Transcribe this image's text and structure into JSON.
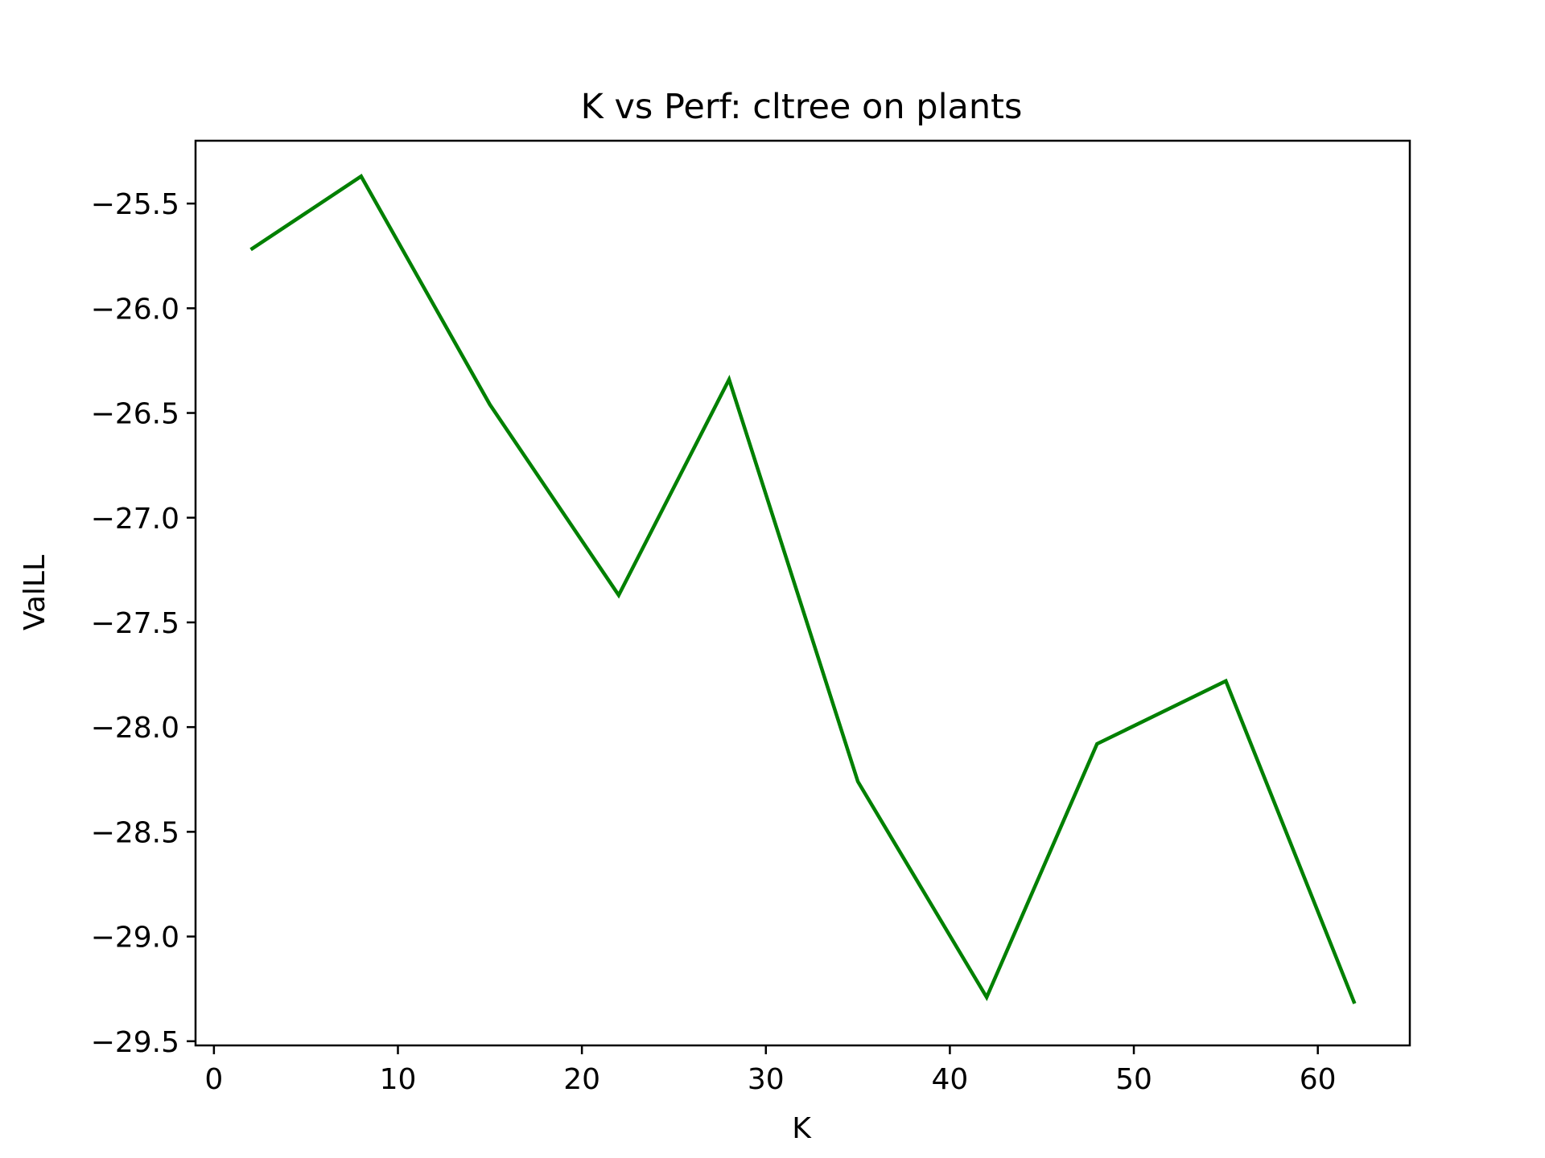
{
  "chart_data": {
    "type": "line",
    "title": "K vs Perf: cltree on plants",
    "xlabel": "K",
    "ylabel": "ValLL",
    "x": [
      2,
      8,
      15,
      22,
      28,
      35,
      42,
      48,
      55,
      62
    ],
    "series": [
      {
        "color": "#008000",
        "values": [
          -25.72,
          -25.37,
          -26.46,
          -27.37,
          -26.34,
          -28.26,
          -29.29,
          -28.08,
          -27.78,
          -29.32
        ]
      }
    ],
    "xlim": [
      -1,
      65
    ],
    "ylim": [
      -29.52,
      -25.2
    ],
    "xticks": [
      0,
      10,
      20,
      30,
      40,
      50,
      60
    ],
    "xtick_labels": [
      "0",
      "10",
      "20",
      "30",
      "40",
      "50",
      "60"
    ],
    "yticks": [
      -25.5,
      -26.0,
      -26.5,
      -27.0,
      -27.5,
      -28.0,
      -28.5,
      -29.0,
      -29.5
    ],
    "ytick_labels": [
      "−25.5",
      "−26.0",
      "−26.5",
      "−27.0",
      "−27.5",
      "−28.0",
      "−28.5",
      "−29.0",
      "−29.5"
    ],
    "grid": false,
    "legend": false
  }
}
